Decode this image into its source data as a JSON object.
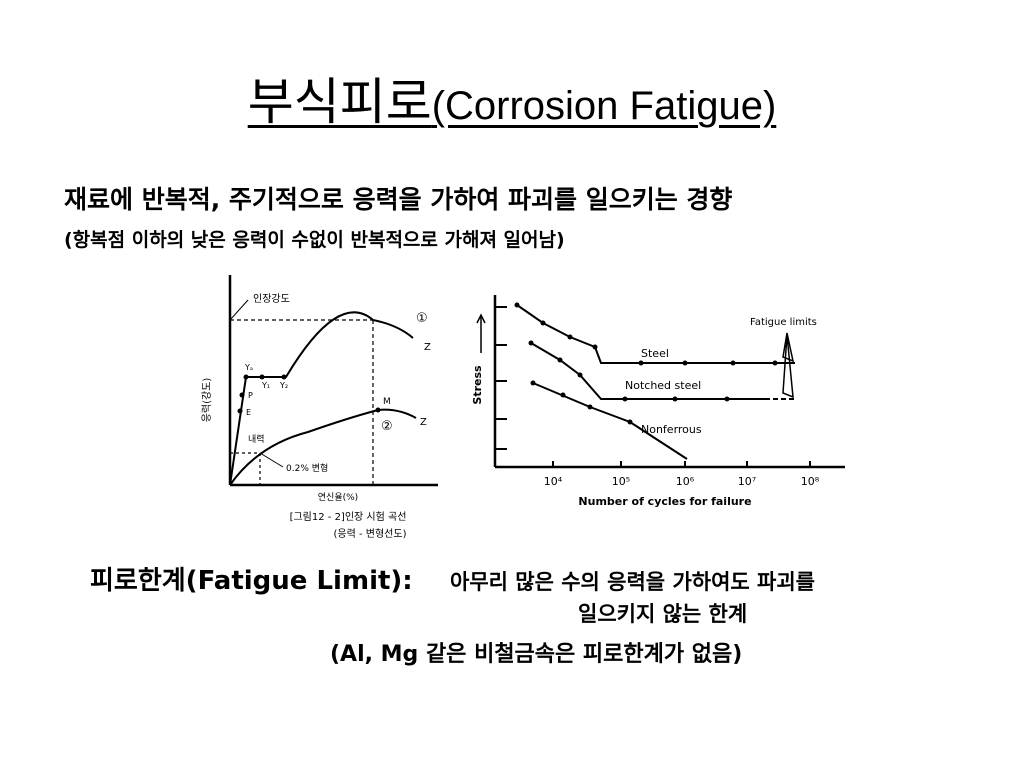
{
  "title": {
    "korean": "부식피로",
    "english": "(Corrosion Fatigue)"
  },
  "definition": {
    "main": "재료에 반복적, 주기적으로 응력을 가하여 파괴를 일으키는 경향",
    "sub": "(항복점 이하의 낮은 응력이 수없이 반복적으로 가해져 일어남)"
  },
  "figure_left": {
    "y_axis_label": "응력(강도)",
    "tensile_strength": "인장강도",
    "curve1_mark": "①",
    "curve2_mark": "②",
    "end_label": "Z",
    "points": [
      "Yₐ",
      "Y₁",
      "Y₂",
      "P",
      "E",
      "M"
    ],
    "proof_stress": "내력",
    "offset_label": "0.2% 변형",
    "x_axis_label": "연신율(%)",
    "caption1": "[그림12 - 2]인장 시험 곡선",
    "caption2": "(응력 - 변형선도)"
  },
  "figure_right": {
    "y_axis_label": "Stress",
    "x_axis_label": "Number of cycles for failure",
    "ticks": [
      "10⁴",
      "10⁵",
      "10⁶",
      "10⁷",
      "10⁸"
    ],
    "series": [
      "Steel",
      "Notched steel",
      "Nonferrous"
    ],
    "annotation": "Fatigue limits"
  },
  "fatigue_limit": {
    "label": "피로한계(Fatigue Limit):",
    "desc1": "아무리 많은 수의 응력을 가하여도 파괴를",
    "desc2": "일으키지 않는 한계",
    "note": "(Al, Mg 같은 비철금속은 피로한계가 없음)"
  }
}
